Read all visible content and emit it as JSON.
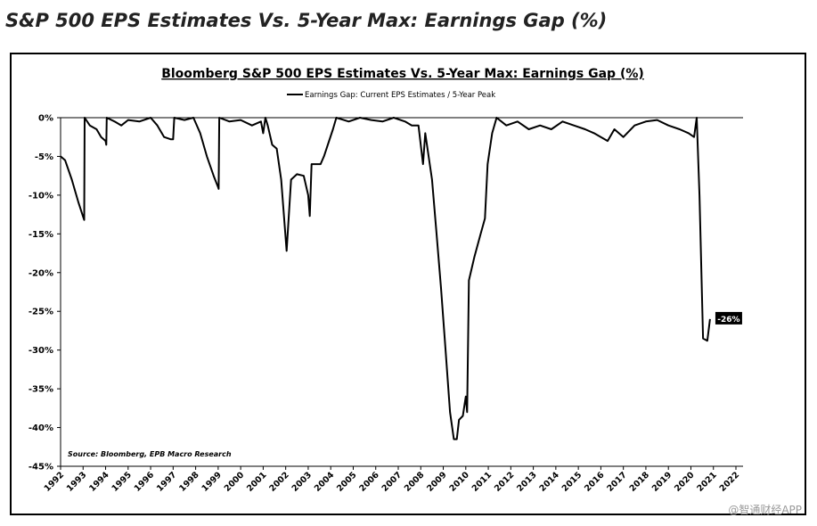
{
  "page_title": "S&P 500 EPS Estimates Vs. 5-Year Max: Earnings Gap (%)",
  "watermark": "@智通财经APP",
  "chart_data": {
    "type": "line",
    "title": "Bloomberg S&P 500 EPS Estimates Vs. 5-Year Max: Earnings Gap (%)",
    "source": "Source: Bloomberg, EPB Macro Research",
    "annotation": "-26%",
    "x": [
      1992.0,
      1992.2,
      1992.5,
      1992.8,
      1993.0,
      1993.05,
      1993.07,
      1993.3,
      1993.6,
      1993.8,
      1994.0,
      1994.03,
      1994.05,
      1994.4,
      1994.7,
      1995.0,
      1995.5,
      1996.0,
      1996.3,
      1996.6,
      1996.9,
      1997.0,
      1997.05,
      1997.5,
      1997.9,
      1998.2,
      1998.5,
      1998.8,
      1999.0,
      1999.02,
      1999.05,
      1999.5,
      2000.0,
      2000.5,
      2000.9,
      2001.0,
      2001.1,
      2001.2,
      2001.4,
      2001.6,
      2001.8,
      2002.04,
      2002.24,
      2002.5,
      2002.8,
      2003.0,
      2003.07,
      2003.15,
      2003.55,
      2003.7,
      2004.1,
      2004.25,
      2004.8,
      2005.3,
      2005.8,
      2006.3,
      2006.8,
      2007.3,
      2007.6,
      2007.9,
      2008.1,
      2008.2,
      2008.5,
      2008.7,
      2008.9,
      2009.1,
      2009.3,
      2009.47,
      2009.6,
      2009.7,
      2009.87,
      2010.0,
      2010.06,
      2010.14,
      2010.38,
      2010.66,
      2010.85,
      2010.97,
      2011.17,
      2011.37,
      2011.8,
      2012.3,
      2012.8,
      2013.3,
      2013.8,
      2014.3,
      2014.8,
      2015.3,
      2015.7,
      2016.0,
      2016.3,
      2016.6,
      2017.0,
      2017.5,
      2018.0,
      2018.5,
      2019.0,
      2019.5,
      2019.9,
      2020.14,
      2020.26,
      2020.38,
      2020.54,
      2020.73,
      2020.85
    ],
    "series": [
      {
        "name": "Earnings Gap: Current EPS Estimates / 5-Year Peak",
        "color": "#000000",
        "values": [
          -5,
          -5.5,
          -8,
          -11,
          -12.8,
          -13.2,
          0,
          -1,
          -1.5,
          -2.5,
          -3,
          -3.5,
          0,
          -0.5,
          -1,
          -0.3,
          -0.5,
          0,
          -1,
          -2.5,
          -2.8,
          -2.8,
          0,
          -0.3,
          0,
          -2,
          -5,
          -7.5,
          -9,
          -9.2,
          0,
          -0.5,
          -0.3,
          -1,
          -0.5,
          -2,
          0,
          -1,
          -3.5,
          -4,
          -8,
          -17.2,
          -8,
          -7.3,
          -7.5,
          -10,
          -12.7,
          -6,
          -6,
          -5,
          -1.5,
          0,
          -0.5,
          0,
          -0.3,
          -0.5,
          0,
          -0.5,
          -1,
          -1,
          -6,
          -2,
          -8,
          -15,
          -22,
          -30,
          -38,
          -41.5,
          -41.5,
          -39,
          -38.5,
          -36,
          -38,
          -21,
          -18,
          -15,
          -13,
          -6,
          -2,
          0,
          -1,
          -0.5,
          -1.5,
          -1,
          -1.5,
          -0.5,
          -1,
          -1.5,
          -2,
          -2.5,
          -3,
          -1.5,
          -2.5,
          -1,
          -0.5,
          -0.3,
          -1,
          -1.5,
          -2,
          -2.5,
          0,
          -10,
          -28.5,
          -28.8,
          -26
        ]
      }
    ],
    "xlim": [
      1992,
      2022
    ],
    "xticks": [
      1992,
      1993,
      1994,
      1995,
      1996,
      1997,
      1998,
      1999,
      2000,
      2001,
      2002,
      2003,
      2004,
      2005,
      2006,
      2007,
      2008,
      2009,
      2010,
      2011,
      2012,
      2013,
      2014,
      2015,
      2016,
      2017,
      2018,
      2019,
      2020,
      2021,
      2022
    ],
    "ylim": [
      -45,
      0
    ],
    "yticks": [
      {
        "value": 0,
        "label": "0%"
      },
      {
        "value": -5,
        "label": "-5%"
      },
      {
        "value": -10,
        "label": "-10%"
      },
      {
        "value": -15,
        "label": "-15%"
      },
      {
        "value": -20,
        "label": "-20%"
      },
      {
        "value": -25,
        "label": "-25%"
      },
      {
        "value": -30,
        "label": "-30%"
      },
      {
        "value": -35,
        "label": "-35%"
      },
      {
        "value": -40,
        "label": "-40%"
      },
      {
        "value": -45,
        "label": "-45%"
      }
    ],
    "grid": false
  }
}
